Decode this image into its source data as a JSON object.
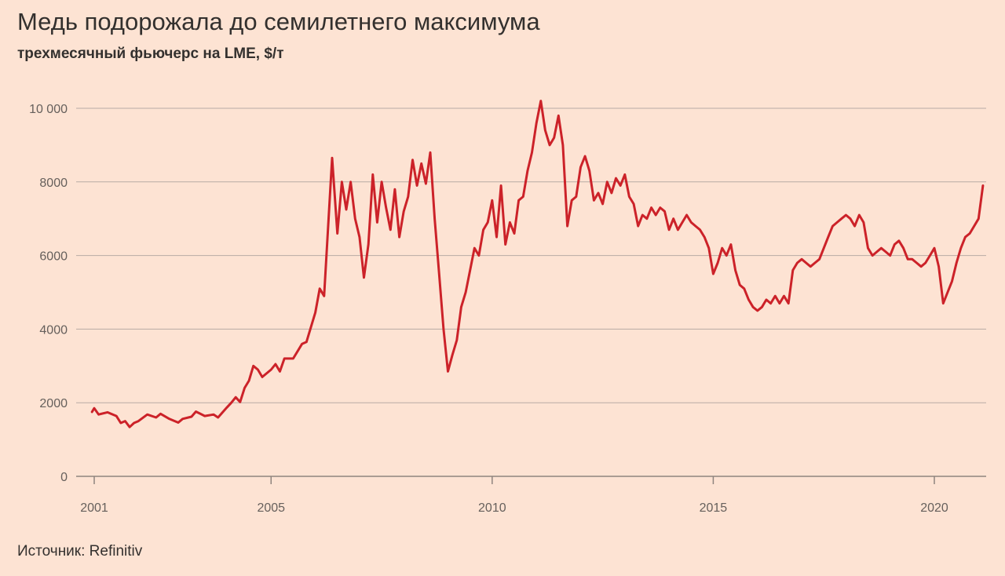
{
  "title": "Медь подорожала до семилетнего максимума",
  "subtitle": "трехмесячный фьючерс на LME, $/т",
  "source": "Источник: Refinitiv",
  "colors": {
    "line": "#cc2229",
    "grid": "#b8aba4",
    "background": "#fde3d3"
  },
  "chart_data": {
    "type": "line",
    "title": "Медь подорожала до семилетнего максимума",
    "subtitle": "трехмесячный фьючерс на LME, $/т",
    "xlabel": "",
    "ylabel": "",
    "xlim": [
      2001.0,
      2021.1
    ],
    "ylim": [
      0,
      10000
    ],
    "grid": true,
    "x_ticks": [
      {
        "value": 2001,
        "label": "2001"
      },
      {
        "value": 2005,
        "label": "2005"
      },
      {
        "value": 2010,
        "label": "2010"
      },
      {
        "value": 2015,
        "label": "2015"
      },
      {
        "value": 2020,
        "label": "2020"
      }
    ],
    "y_ticks": [
      {
        "value": 0,
        "label": "0"
      },
      {
        "value": 2000,
        "label": "2000"
      },
      {
        "value": 4000,
        "label": "4000"
      },
      {
        "value": 6000,
        "label": "6000"
      },
      {
        "value": 8000,
        "label": "8000"
      },
      {
        "value": 10000,
        "label": "10 000"
      }
    ],
    "series": [
      {
        "points": [
          [
            2000.95,
            1750
          ],
          [
            2001.0,
            1850
          ],
          [
            2001.1,
            1680
          ],
          [
            2001.3,
            1740
          ],
          [
            2001.5,
            1640
          ],
          [
            2001.6,
            1450
          ],
          [
            2001.7,
            1500
          ],
          [
            2001.8,
            1340
          ],
          [
            2001.9,
            1450
          ],
          [
            2002.0,
            1500
          ],
          [
            2002.2,
            1680
          ],
          [
            2002.4,
            1600
          ],
          [
            2002.5,
            1700
          ],
          [
            2002.7,
            1560
          ],
          [
            2002.9,
            1460
          ],
          [
            2003.0,
            1560
          ],
          [
            2003.2,
            1620
          ],
          [
            2003.3,
            1760
          ],
          [
            2003.5,
            1640
          ],
          [
            2003.7,
            1680
          ],
          [
            2003.8,
            1600
          ],
          [
            2004.0,
            1870
          ],
          [
            2004.1,
            2000
          ],
          [
            2004.2,
            2150
          ],
          [
            2004.3,
            2020
          ],
          [
            2004.4,
            2400
          ],
          [
            2004.5,
            2600
          ],
          [
            2004.6,
            3000
          ],
          [
            2004.7,
            2900
          ],
          [
            2004.8,
            2700
          ],
          [
            2005.0,
            2900
          ],
          [
            2005.1,
            3050
          ],
          [
            2005.2,
            2850
          ],
          [
            2005.3,
            3200
          ],
          [
            2005.5,
            3200
          ],
          [
            2005.7,
            3600
          ],
          [
            2005.8,
            3650
          ],
          [
            2006.0,
            4450
          ],
          [
            2006.1,
            5100
          ],
          [
            2006.2,
            4900
          ],
          [
            2006.3,
            7000
          ],
          [
            2006.38,
            8650
          ],
          [
            2006.5,
            6600
          ],
          [
            2006.6,
            8000
          ],
          [
            2006.7,
            7250
          ],
          [
            2006.8,
            8000
          ],
          [
            2006.9,
            7000
          ],
          [
            2007.0,
            6500
          ],
          [
            2007.1,
            5400
          ],
          [
            2007.2,
            6300
          ],
          [
            2007.3,
            8200
          ],
          [
            2007.4,
            6900
          ],
          [
            2007.5,
            8000
          ],
          [
            2007.6,
            7300
          ],
          [
            2007.7,
            6700
          ],
          [
            2007.8,
            7800
          ],
          [
            2007.9,
            6500
          ],
          [
            2008.0,
            7200
          ],
          [
            2008.1,
            7600
          ],
          [
            2008.2,
            8600
          ],
          [
            2008.3,
            7900
          ],
          [
            2008.4,
            8500
          ],
          [
            2008.5,
            7950
          ],
          [
            2008.6,
            8800
          ],
          [
            2008.7,
            7000
          ],
          [
            2008.8,
            5500
          ],
          [
            2008.9,
            4000
          ],
          [
            2009.0,
            2850
          ],
          [
            2009.1,
            3300
          ],
          [
            2009.2,
            3700
          ],
          [
            2009.3,
            4600
          ],
          [
            2009.4,
            5000
          ],
          [
            2009.5,
            5600
          ],
          [
            2009.6,
            6200
          ],
          [
            2009.7,
            6000
          ],
          [
            2009.8,
            6700
          ],
          [
            2009.9,
            6900
          ],
          [
            2010.0,
            7500
          ],
          [
            2010.1,
            6500
          ],
          [
            2010.2,
            7900
          ],
          [
            2010.3,
            6300
          ],
          [
            2010.4,
            6900
          ],
          [
            2010.5,
            6600
          ],
          [
            2010.6,
            7500
          ],
          [
            2010.7,
            7600
          ],
          [
            2010.8,
            8300
          ],
          [
            2010.9,
            8800
          ],
          [
            2011.0,
            9600
          ],
          [
            2011.1,
            10200
          ],
          [
            2011.2,
            9400
          ],
          [
            2011.3,
            9000
          ],
          [
            2011.4,
            9200
          ],
          [
            2011.5,
            9800
          ],
          [
            2011.6,
            9000
          ],
          [
            2011.7,
            6800
          ],
          [
            2011.8,
            7500
          ],
          [
            2011.9,
            7600
          ],
          [
            2012.0,
            8400
          ],
          [
            2012.1,
            8700
          ],
          [
            2012.2,
            8300
          ],
          [
            2012.3,
            7500
          ],
          [
            2012.4,
            7700
          ],
          [
            2012.5,
            7400
          ],
          [
            2012.6,
            8000
          ],
          [
            2012.7,
            7700
          ],
          [
            2012.8,
            8100
          ],
          [
            2012.9,
            7900
          ],
          [
            2013.0,
            8200
          ],
          [
            2013.1,
            7600
          ],
          [
            2013.2,
            7400
          ],
          [
            2013.3,
            6800
          ],
          [
            2013.4,
            7100
          ],
          [
            2013.5,
            7000
          ],
          [
            2013.6,
            7300
          ],
          [
            2013.7,
            7100
          ],
          [
            2013.8,
            7300
          ],
          [
            2013.9,
            7200
          ],
          [
            2014.0,
            6700
          ],
          [
            2014.1,
            7000
          ],
          [
            2014.2,
            6700
          ],
          [
            2014.3,
            6900
          ],
          [
            2014.4,
            7100
          ],
          [
            2014.5,
            6900
          ],
          [
            2014.6,
            6800
          ],
          [
            2014.7,
            6700
          ],
          [
            2014.8,
            6500
          ],
          [
            2014.9,
            6200
          ],
          [
            2015.0,
            5500
          ],
          [
            2015.1,
            5800
          ],
          [
            2015.2,
            6200
          ],
          [
            2015.3,
            6000
          ],
          [
            2015.4,
            6300
          ],
          [
            2015.5,
            5600
          ],
          [
            2015.6,
            5200
          ],
          [
            2015.7,
            5100
          ],
          [
            2015.8,
            4800
          ],
          [
            2015.9,
            4600
          ],
          [
            2016.0,
            4500
          ],
          [
            2016.1,
            4600
          ],
          [
            2016.2,
            4800
          ],
          [
            2016.3,
            4700
          ],
          [
            2016.4,
            4900
          ],
          [
            2016.5,
            4700
          ],
          [
            2016.6,
            4900
          ],
          [
            2016.7,
            4700
          ],
          [
            2016.8,
            5600
          ],
          [
            2016.9,
            5800
          ],
          [
            2017.0,
            5900
          ],
          [
            2017.1,
            5800
          ],
          [
            2017.2,
            5700
          ],
          [
            2017.3,
            5800
          ],
          [
            2017.4,
            5900
          ],
          [
            2017.5,
            6200
          ],
          [
            2017.6,
            6500
          ],
          [
            2017.7,
            6800
          ],
          [
            2017.8,
            6900
          ],
          [
            2017.9,
            7000
          ],
          [
            2018.0,
            7100
          ],
          [
            2018.1,
            7000
          ],
          [
            2018.2,
            6800
          ],
          [
            2018.3,
            7100
          ],
          [
            2018.4,
            6900
          ],
          [
            2018.5,
            6200
          ],
          [
            2018.6,
            6000
          ],
          [
            2018.7,
            6100
          ],
          [
            2018.8,
            6200
          ],
          [
            2018.9,
            6100
          ],
          [
            2019.0,
            6000
          ],
          [
            2019.1,
            6300
          ],
          [
            2019.2,
            6400
          ],
          [
            2019.3,
            6200
          ],
          [
            2019.4,
            5900
          ],
          [
            2019.5,
            5900
          ],
          [
            2019.6,
            5800
          ],
          [
            2019.7,
            5700
          ],
          [
            2019.8,
            5800
          ],
          [
            2019.9,
            6000
          ],
          [
            2020.0,
            6200
          ],
          [
            2020.1,
            5700
          ],
          [
            2020.2,
            4700
          ],
          [
            2020.3,
            5000
          ],
          [
            2020.4,
            5300
          ],
          [
            2020.5,
            5800
          ],
          [
            2020.6,
            6200
          ],
          [
            2020.7,
            6500
          ],
          [
            2020.8,
            6600
          ],
          [
            2020.9,
            6800
          ],
          [
            2021.0,
            7000
          ],
          [
            2021.1,
            7900
          ]
        ]
      }
    ]
  }
}
